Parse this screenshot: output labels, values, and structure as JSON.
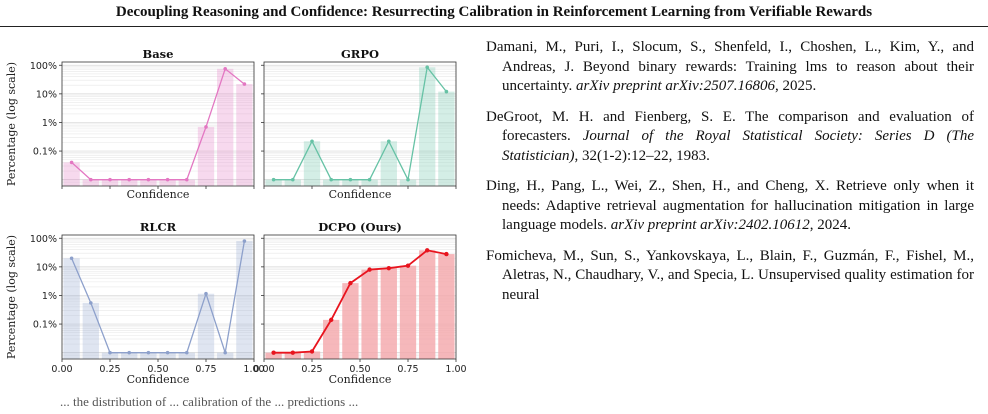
{
  "header": {
    "title": "Decoupling Reasoning and Confidence: Resurrecting Calibration in Reinforcement Learning from Verifiable Rewards"
  },
  "figure": {
    "caption_partial": "... the distribution of ... calibration of the ... predictions ...",
    "chart_data": [
      {
        "type": "bar+line",
        "title": "Base",
        "color": "#e377c2",
        "xlabel": "Confidence",
        "ylabel": "Percentage (log scale)",
        "x": [
          0.05,
          0.15,
          0.25,
          0.35,
          0.45,
          0.55,
          0.65,
          0.75,
          0.85,
          0.95
        ],
        "values": [
          0.04,
          0.01,
          0.01,
          0.01,
          0.01,
          0.01,
          0.01,
          0.7,
          75,
          22
        ],
        "yscale": "log",
        "ylim": [
          0.006,
          130
        ],
        "xlim": [
          0,
          1
        ],
        "yticks": [
          0.1,
          1,
          10,
          100
        ],
        "ytick_labels": [
          "0.1%",
          "1%",
          "10%",
          "100%"
        ],
        "xticks": [
          0,
          0.25,
          0.5,
          0.75,
          1
        ],
        "xtick_labels": []
      },
      {
        "type": "bar+line",
        "title": "GRPO",
        "color": "#66c2a5",
        "xlabel": "Confidence",
        "ylabel": "",
        "x": [
          0.05,
          0.15,
          0.25,
          0.35,
          0.45,
          0.55,
          0.65,
          0.75,
          0.85,
          0.95
        ],
        "values": [
          0.01,
          0.01,
          0.22,
          0.01,
          0.01,
          0.01,
          0.22,
          0.01,
          85,
          12
        ],
        "yscale": "log",
        "ylim": [
          0.006,
          130
        ],
        "xlim": [
          0,
          1
        ],
        "yticks": [
          0.1,
          1,
          10,
          100
        ],
        "ytick_labels": [],
        "xticks": [
          0,
          0.25,
          0.5,
          0.75,
          1
        ],
        "xtick_labels": []
      },
      {
        "type": "bar+line",
        "title": "RLCR",
        "color": "#8da0cb",
        "xlabel": "Confidence",
        "ylabel": "Percentage (log scale)",
        "x": [
          0.05,
          0.15,
          0.25,
          0.35,
          0.45,
          0.55,
          0.65,
          0.75,
          0.85,
          0.95
        ],
        "values": [
          20,
          0.55,
          0.01,
          0.01,
          0.01,
          0.01,
          0.01,
          1.15,
          0.01,
          80
        ],
        "yscale": "log",
        "ylim": [
          0.006,
          130
        ],
        "xlim": [
          0,
          1
        ],
        "yticks": [
          0.1,
          1,
          10,
          100
        ],
        "ytick_labels": [
          "0.1%",
          "1%",
          "10%",
          "100%"
        ],
        "xticks": [
          0,
          0.25,
          0.5,
          0.75,
          1
        ],
        "xtick_labels": [
          "0.00",
          "0.25",
          "0.50",
          "0.75",
          "1.00"
        ]
      },
      {
        "type": "bar+line",
        "title": "DCPO (Ours)",
        "color": "#e8141e",
        "bar_color": "#f4a6aa",
        "xlabel": "Confidence",
        "ylabel": "",
        "x": [
          0.05,
          0.15,
          0.25,
          0.35,
          0.45,
          0.55,
          0.65,
          0.75,
          0.85,
          0.95
        ],
        "values": [
          0.01,
          0.01,
          0.011,
          0.14,
          2.7,
          8,
          9,
          11,
          38,
          28
        ],
        "yscale": "log",
        "ylim": [
          0.006,
          130
        ],
        "xlim": [
          0,
          1
        ],
        "yticks": [
          0.1,
          1,
          10,
          100
        ],
        "ytick_labels": [],
        "xticks": [
          0,
          0.25,
          0.5,
          0.75,
          1
        ],
        "xtick_labels": [
          "0.00",
          "0.25",
          "0.50",
          "0.75",
          "1.00"
        ]
      }
    ]
  },
  "references": [
    {
      "text": "Damani, M., Puri, I., Slocum, S., Shenfeld, I., Choshen, L., Kim, Y., and Andreas, J. Beyond binary rewards: Training lms to reason about their uncertainty. ",
      "venue": "arXiv preprint arXiv:2507.16806",
      "tail": ", 2025."
    },
    {
      "text": "DeGroot, M. H. and Fienberg, S. E. The comparison and evaluation of forecasters. ",
      "venue": "Journal of the Royal Statistical Society: Series D (The Statistician)",
      "tail": ", 32(1-2):12–22, 1983."
    },
    {
      "text": "Ding, H., Pang, L., Wei, Z., Shen, H., and Cheng, X. Retrieve only when it needs: Adaptive retrieval augmentation for hallucination mitigation in large language models. ",
      "venue": "arXiv preprint arXiv:2402.10612",
      "tail": ", 2024."
    },
    {
      "text": "Fomicheva, M., Sun, S., Yankovskaya, L., Blain, F., Guzmán, F., Fishel, M., Aletras, N., Chaudhary, V., and Specia, L. Unsupervised quality estimation for neural",
      "venue": "",
      "tail": ""
    }
  ]
}
